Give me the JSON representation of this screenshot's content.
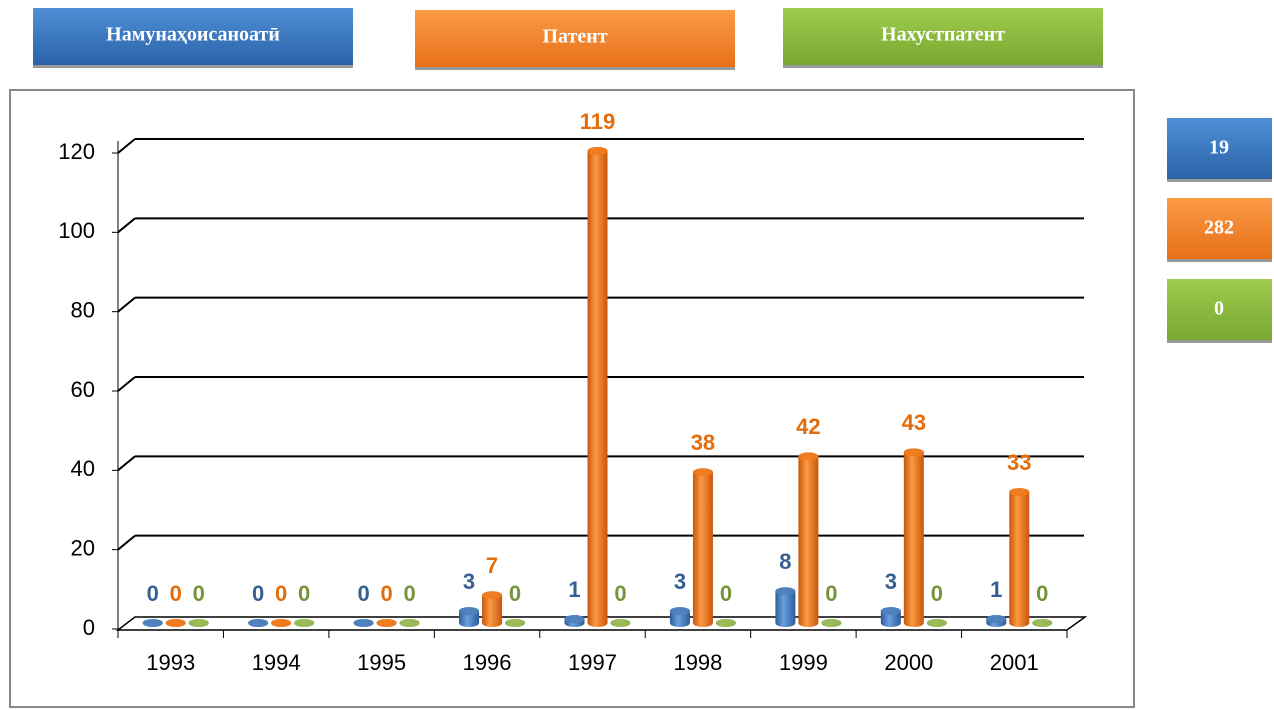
{
  "chart_data": {
    "type": "bar",
    "categories": [
      "1993",
      "1994",
      "1995",
      "1996",
      "1997",
      "1998",
      "1999",
      "2000",
      "2001"
    ],
    "series": [
      {
        "name": "Намунаҳоисаноатӣ",
        "color": "#4f81bd",
        "label_color": "#376092",
        "values": [
          0,
          0,
          0,
          3,
          1,
          3,
          8,
          3,
          1
        ]
      },
      {
        "name": "Патент",
        "color": "#f07c1e",
        "label_color": "#e46c0a",
        "values": [
          0,
          0,
          0,
          7,
          119,
          38,
          42,
          43,
          33
        ]
      },
      {
        "name": "Нахустпатент",
        "color": "#9bbb59",
        "label_color": "#77933c",
        "values": [
          0,
          0,
          0,
          0,
          0,
          0,
          0,
          0,
          0
        ]
      }
    ],
    "totals": [
      19,
      282,
      0
    ],
    "ylim": [
      0,
      120
    ],
    "yticks": [
      0,
      20,
      40,
      60,
      80,
      100,
      120
    ],
    "grid": true
  }
}
